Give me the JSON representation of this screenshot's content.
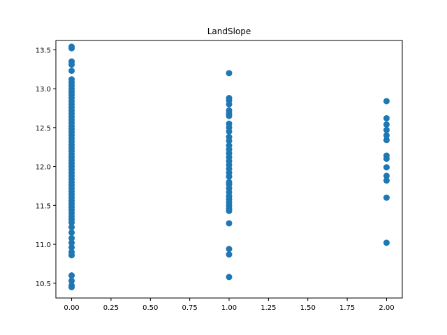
{
  "chart_data": {
    "type": "scatter",
    "title": "LandSlope",
    "xlabel": "",
    "ylabel": "",
    "xlim": [
      -0.1,
      2.1
    ],
    "ylim": [
      10.31,
      13.62
    ],
    "xticks": [
      0.0,
      0.25,
      0.5,
      0.75,
      1.0,
      1.25,
      1.5,
      1.75,
      2.0
    ],
    "xtick_labels": [
      "0.00",
      "0.25",
      "0.50",
      "0.75",
      "1.00",
      "1.25",
      "1.50",
      "1.75",
      "2.00"
    ],
    "yticks": [
      10.5,
      11.0,
      11.5,
      12.0,
      12.5,
      13.0,
      13.5
    ],
    "ytick_labels": [
      "10.5",
      "11.0",
      "11.5",
      "12.0",
      "12.5",
      "13.0",
      "13.5"
    ],
    "grid": false,
    "marker_color": "#1f77b4",
    "series": [
      {
        "points": [
          {
            "x": 0,
            "y": 13.54
          },
          {
            "x": 0,
            "y": 13.52
          },
          {
            "x": 0,
            "y": 13.35
          },
          {
            "x": 0,
            "y": 13.31
          },
          {
            "x": 0,
            "y": 13.23
          },
          {
            "x": 0,
            "y": 13.12
          },
          {
            "x": 0,
            "y": 13.08
          },
          {
            "x": 0,
            "y": 13.04
          },
          {
            "x": 0,
            "y": 13.0
          },
          {
            "x": 0,
            "y": 12.96
          },
          {
            "x": 0,
            "y": 12.92
          },
          {
            "x": 0,
            "y": 12.88
          },
          {
            "x": 0,
            "y": 12.84
          },
          {
            "x": 0,
            "y": 12.8
          },
          {
            "x": 0,
            "y": 12.76
          },
          {
            "x": 0,
            "y": 12.72
          },
          {
            "x": 0,
            "y": 12.68
          },
          {
            "x": 0,
            "y": 12.64
          },
          {
            "x": 0,
            "y": 12.6
          },
          {
            "x": 0,
            "y": 12.56
          },
          {
            "x": 0,
            "y": 12.52
          },
          {
            "x": 0,
            "y": 12.48
          },
          {
            "x": 0,
            "y": 12.44
          },
          {
            "x": 0,
            "y": 12.4
          },
          {
            "x": 0,
            "y": 12.36
          },
          {
            "x": 0,
            "y": 12.32
          },
          {
            "x": 0,
            "y": 12.28
          },
          {
            "x": 0,
            "y": 12.24
          },
          {
            "x": 0,
            "y": 12.2
          },
          {
            "x": 0,
            "y": 12.16
          },
          {
            "x": 0,
            "y": 12.12
          },
          {
            "x": 0,
            "y": 12.08
          },
          {
            "x": 0,
            "y": 12.04
          },
          {
            "x": 0,
            "y": 12.0
          },
          {
            "x": 0,
            "y": 11.96
          },
          {
            "x": 0,
            "y": 11.92
          },
          {
            "x": 0,
            "y": 11.88
          },
          {
            "x": 0,
            "y": 11.84
          },
          {
            "x": 0,
            "y": 11.8
          },
          {
            "x": 0,
            "y": 11.76
          },
          {
            "x": 0,
            "y": 11.72
          },
          {
            "x": 0,
            "y": 11.68
          },
          {
            "x": 0,
            "y": 11.64
          },
          {
            "x": 0,
            "y": 11.6
          },
          {
            "x": 0,
            "y": 11.56
          },
          {
            "x": 0,
            "y": 11.52
          },
          {
            "x": 0,
            "y": 11.48
          },
          {
            "x": 0,
            "y": 11.44
          },
          {
            "x": 0,
            "y": 11.4
          },
          {
            "x": 0,
            "y": 11.36
          },
          {
            "x": 0,
            "y": 11.32
          },
          {
            "x": 0,
            "y": 11.28
          },
          {
            "x": 0,
            "y": 11.22
          },
          {
            "x": 0,
            "y": 11.15
          },
          {
            "x": 0,
            "y": 11.08
          },
          {
            "x": 0,
            "y": 11.02
          },
          {
            "x": 0,
            "y": 10.96
          },
          {
            "x": 0,
            "y": 10.9
          },
          {
            "x": 0,
            "y": 10.86
          },
          {
            "x": 0,
            "y": 10.6
          },
          {
            "x": 0,
            "y": 10.53
          },
          {
            "x": 0,
            "y": 10.47
          },
          {
            "x": 0,
            "y": 10.45
          },
          {
            "x": 1,
            "y": 13.2
          },
          {
            "x": 1,
            "y": 12.88
          },
          {
            "x": 1,
            "y": 12.85
          },
          {
            "x": 1,
            "y": 12.8
          },
          {
            "x": 1,
            "y": 12.72
          },
          {
            "x": 1,
            "y": 12.68
          },
          {
            "x": 1,
            "y": 12.65
          },
          {
            "x": 1,
            "y": 12.55
          },
          {
            "x": 1,
            "y": 12.5
          },
          {
            "x": 1,
            "y": 12.45
          },
          {
            "x": 1,
            "y": 12.38
          },
          {
            "x": 1,
            "y": 12.33
          },
          {
            "x": 1,
            "y": 12.27
          },
          {
            "x": 1,
            "y": 12.22
          },
          {
            "x": 1,
            "y": 12.17
          },
          {
            "x": 1,
            "y": 12.12
          },
          {
            "x": 1,
            "y": 12.07
          },
          {
            "x": 1,
            "y": 12.02
          },
          {
            "x": 1,
            "y": 11.97
          },
          {
            "x": 1,
            "y": 11.92
          },
          {
            "x": 1,
            "y": 11.87
          },
          {
            "x": 1,
            "y": 11.8
          },
          {
            "x": 1,
            "y": 11.77
          },
          {
            "x": 1,
            "y": 11.72
          },
          {
            "x": 1,
            "y": 11.67
          },
          {
            "x": 1,
            "y": 11.62
          },
          {
            "x": 1,
            "y": 11.58
          },
          {
            "x": 1,
            "y": 11.54
          },
          {
            "x": 1,
            "y": 11.5
          },
          {
            "x": 1,
            "y": 11.46
          },
          {
            "x": 1,
            "y": 11.43
          },
          {
            "x": 1,
            "y": 11.27
          },
          {
            "x": 1,
            "y": 10.94
          },
          {
            "x": 1,
            "y": 10.87
          },
          {
            "x": 1,
            "y": 10.58
          },
          {
            "x": 2,
            "y": 12.84
          },
          {
            "x": 2,
            "y": 12.62
          },
          {
            "x": 2,
            "y": 12.54
          },
          {
            "x": 2,
            "y": 12.47
          },
          {
            "x": 2,
            "y": 12.4
          },
          {
            "x": 2,
            "y": 12.34
          },
          {
            "x": 2,
            "y": 12.14
          },
          {
            "x": 2,
            "y": 12.1
          },
          {
            "x": 2,
            "y": 11.99
          },
          {
            "x": 2,
            "y": 11.88
          },
          {
            "x": 2,
            "y": 11.82
          },
          {
            "x": 2,
            "y": 11.6
          },
          {
            "x": 2,
            "y": 11.02
          }
        ]
      }
    ]
  }
}
